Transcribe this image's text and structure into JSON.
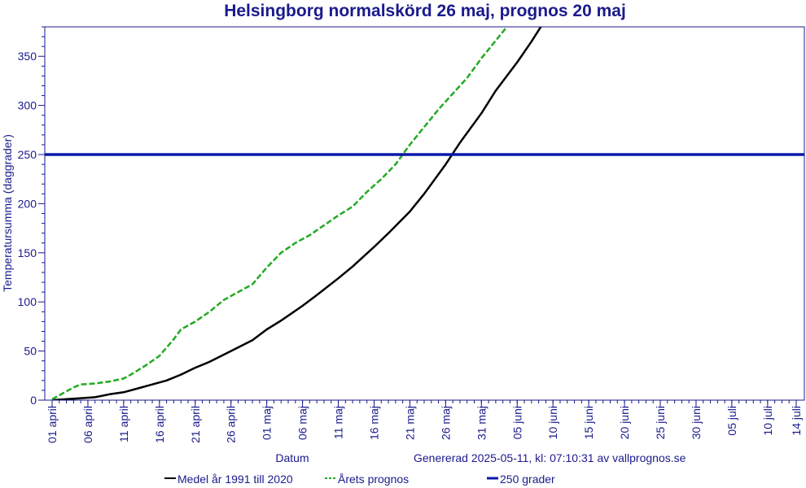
{
  "colors": {
    "text": "#1a1a8c",
    "axis": "#1a1a8c",
    "normal": "#000000",
    "forecast": "#22aa22",
    "threshold": "#0a1aa8"
  },
  "footer": {
    "generated": "Genererad 2025-05-11, kl: 07:10:31 av vallprognos.se"
  },
  "chart_data": {
    "type": "line",
    "title": "Helsingborg normalskörd 26 maj, prognos 20 maj",
    "xlabel": "Datum",
    "ylabel": "Temperatursumma (daggrader)",
    "x_unit": "date",
    "xlim": [
      "2025-04-01",
      "2025-07-14"
    ],
    "ylim": [
      0,
      380
    ],
    "y_ticks": [
      0,
      50,
      100,
      150,
      200,
      250,
      300,
      350
    ],
    "x_ticks": [
      {
        "date": "2025-04-01",
        "label": "01 april"
      },
      {
        "date": "2025-04-06",
        "label": "06 april"
      },
      {
        "date": "2025-04-11",
        "label": "11 april"
      },
      {
        "date": "2025-04-16",
        "label": "16 april"
      },
      {
        "date": "2025-04-21",
        "label": "21 april"
      },
      {
        "date": "2025-04-26",
        "label": "26 april"
      },
      {
        "date": "2025-05-01",
        "label": "01 maj"
      },
      {
        "date": "2025-05-06",
        "label": "06 maj"
      },
      {
        "date": "2025-05-11",
        "label": "11 maj"
      },
      {
        "date": "2025-05-16",
        "label": "16 maj"
      },
      {
        "date": "2025-05-21",
        "label": "21 maj"
      },
      {
        "date": "2025-05-26",
        "label": "26 maj"
      },
      {
        "date": "2025-05-31",
        "label": "31 maj"
      },
      {
        "date": "2025-06-05",
        "label": "05 juni"
      },
      {
        "date": "2025-06-10",
        "label": "10 juni"
      },
      {
        "date": "2025-06-15",
        "label": "15 juni"
      },
      {
        "date": "2025-06-20",
        "label": "20 juni"
      },
      {
        "date": "2025-06-25",
        "label": "25 juni"
      },
      {
        "date": "2025-06-30",
        "label": "30 juni"
      },
      {
        "date": "2025-07-05",
        "label": "05 juli"
      },
      {
        "date": "2025-07-10",
        "label": "10 juli"
      },
      {
        "date": "2025-07-14",
        "label": "14 juli"
      }
    ],
    "grid": false,
    "legend": "bottom",
    "series": [
      {
        "name": "Medel år 1991 till 2020",
        "color": "#000000",
        "dash": "solid",
        "points": [
          [
            "2025-04-01",
            0
          ],
          [
            "2025-04-03",
            1
          ],
          [
            "2025-04-05",
            2
          ],
          [
            "2025-04-07",
            3
          ],
          [
            "2025-04-09",
            6
          ],
          [
            "2025-04-11",
            8
          ],
          [
            "2025-04-13",
            12
          ],
          [
            "2025-04-15",
            16
          ],
          [
            "2025-04-17",
            20
          ],
          [
            "2025-04-19",
            26
          ],
          [
            "2025-04-21",
            33
          ],
          [
            "2025-04-23",
            39
          ],
          [
            "2025-04-26",
            50
          ],
          [
            "2025-04-29",
            61
          ],
          [
            "2025-05-01",
            72
          ],
          [
            "2025-05-03",
            81
          ],
          [
            "2025-05-06",
            96
          ],
          [
            "2025-05-08",
            107
          ],
          [
            "2025-05-11",
            124
          ],
          [
            "2025-05-13",
            136
          ],
          [
            "2025-05-16",
            156
          ],
          [
            "2025-05-18",
            170
          ],
          [
            "2025-05-21",
            192
          ],
          [
            "2025-05-23",
            210
          ],
          [
            "2025-05-26",
            240
          ],
          [
            "2025-05-28",
            262
          ],
          [
            "2025-05-31",
            292
          ],
          [
            "2025-06-02",
            315
          ],
          [
            "2025-06-05",
            344
          ],
          [
            "2025-06-07",
            365
          ],
          [
            "2025-06-09",
            388
          ]
        ]
      },
      {
        "name": "Årets prognos",
        "color": "#22aa22",
        "dash": "dashed",
        "points": [
          [
            "2025-04-01",
            1
          ],
          [
            "2025-04-02",
            5
          ],
          [
            "2025-04-04",
            13
          ],
          [
            "2025-04-05",
            16
          ],
          [
            "2025-04-07",
            17
          ],
          [
            "2025-04-09",
            19
          ],
          [
            "2025-04-11",
            22
          ],
          [
            "2025-04-12",
            26
          ],
          [
            "2025-04-14",
            35
          ],
          [
            "2025-04-16",
            45
          ],
          [
            "2025-04-18",
            62
          ],
          [
            "2025-04-19",
            72
          ],
          [
            "2025-04-21",
            80
          ],
          [
            "2025-04-23",
            90
          ],
          [
            "2025-04-25",
            102
          ],
          [
            "2025-04-27",
            110
          ],
          [
            "2025-04-29",
            118
          ],
          [
            "2025-05-01",
            135
          ],
          [
            "2025-05-03",
            150
          ],
          [
            "2025-05-05",
            160
          ],
          [
            "2025-05-07",
            168
          ],
          [
            "2025-05-09",
            178
          ],
          [
            "2025-05-11",
            188
          ],
          [
            "2025-05-13",
            197
          ],
          [
            "2025-05-15",
            212
          ],
          [
            "2025-05-17",
            225
          ],
          [
            "2025-05-19",
            240
          ],
          [
            "2025-05-21",
            260
          ],
          [
            "2025-05-23",
            278
          ],
          [
            "2025-05-25",
            296
          ],
          [
            "2025-05-27",
            312
          ],
          [
            "2025-05-29",
            328
          ],
          [
            "2025-05-31",
            348
          ],
          [
            "2025-06-02",
            366
          ],
          [
            "2025-06-04",
            384
          ]
        ]
      },
      {
        "name": "250 grader",
        "color": "#0a1aa8",
        "dash": "solid-thick",
        "points": [
          [
            "2025-04-01",
            250
          ],
          [
            "2025-07-14",
            250
          ]
        ]
      }
    ]
  }
}
